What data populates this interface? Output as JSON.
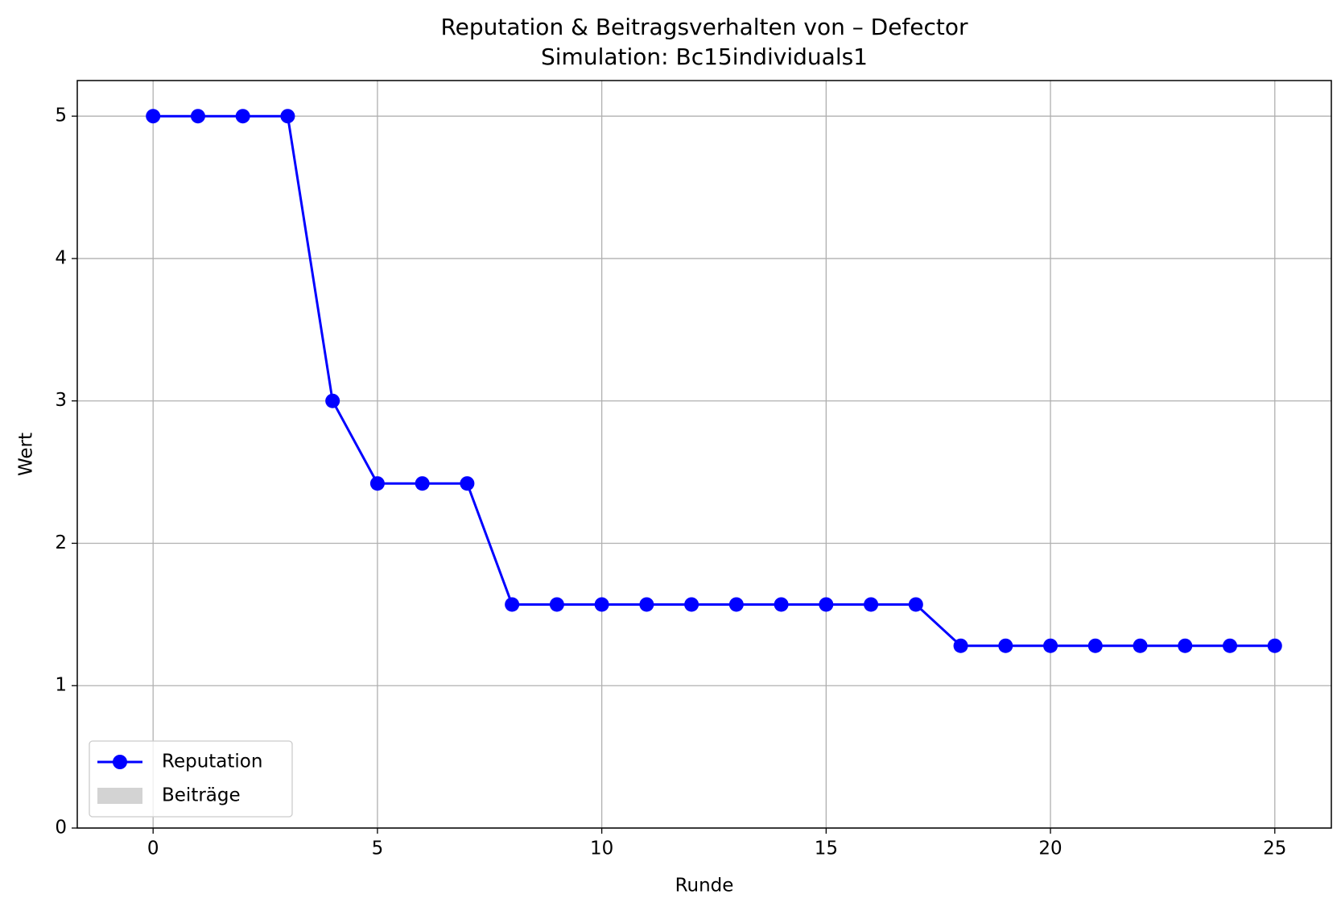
{
  "chart_data": {
    "type": "line",
    "title": "Reputation & Beitragsverhalten von – Defector",
    "subtitle": "Simulation: Bc15individuals1",
    "xlabel": "Runde",
    "ylabel": "Wert",
    "x": [
      0,
      1,
      2,
      3,
      4,
      5,
      6,
      7,
      8,
      9,
      10,
      11,
      12,
      13,
      14,
      15,
      16,
      17,
      18,
      19,
      20,
      21,
      22,
      23,
      24,
      25
    ],
    "series": [
      {
        "name": "Reputation",
        "color": "#0000ff",
        "values": [
          5,
          5,
          5,
          5,
          3,
          2.42,
          2.42,
          2.42,
          1.57,
          1.57,
          1.57,
          1.57,
          1.57,
          1.57,
          1.57,
          1.57,
          1.57,
          1.57,
          1.28,
          1.28,
          1.28,
          1.28,
          1.28,
          1.28,
          1.28,
          1.28
        ]
      },
      {
        "name": "Beiträge",
        "color": "#d3d3d3",
        "type": "bar",
        "values": [
          0,
          0,
          0,
          0,
          0,
          0,
          0,
          0,
          0,
          0,
          0,
          0,
          0,
          0,
          0,
          0,
          0,
          0,
          0,
          0,
          0,
          0,
          0,
          0,
          0,
          0
        ]
      }
    ],
    "xlim": [
      -1.69,
      26.26
    ],
    "ylim": [
      0,
      5.25
    ],
    "xticks": [
      0,
      5,
      10,
      15,
      20,
      25
    ],
    "yticks": [
      0,
      1,
      2,
      3,
      4,
      5
    ],
    "grid": true,
    "legend": "lower left"
  }
}
